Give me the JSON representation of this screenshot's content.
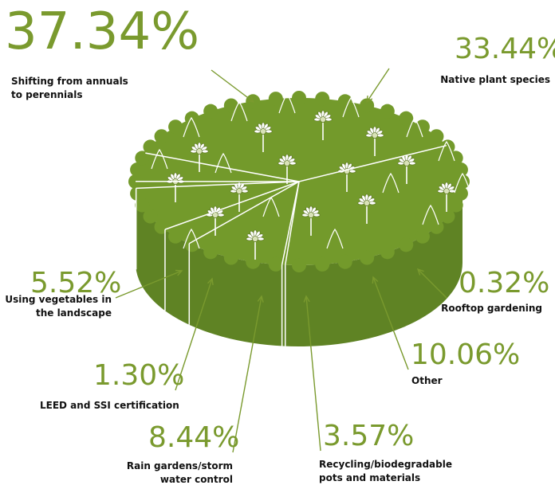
{
  "chart_data": {
    "type": "pie",
    "title": "",
    "unit": "%",
    "slices": [
      {
        "label": "Shifting from annuals to perennials",
        "label_lines": [
          "Shifting from annuals",
          "to perennials"
        ],
        "value": 37.34,
        "display": "37.34%"
      },
      {
        "label": "Native plant species",
        "label_lines": [
          "Native plant species"
        ],
        "value": 33.44,
        "display": "33.44%"
      },
      {
        "label": "Rooftop gardening",
        "label_lines": [
          "Rooftop gardening"
        ],
        "value": 0.32,
        "display": "0.32%"
      },
      {
        "label": "Other",
        "label_lines": [
          "Other"
        ],
        "value": 10.06,
        "display": "10.06%"
      },
      {
        "label": "Recycling/biodegradable pots and materials",
        "label_lines": [
          "Recycling/biodegradable",
          "pots and materials"
        ],
        "value": 3.57,
        "display": "3.57%"
      },
      {
        "label": "Rain gardens/storm water control",
        "label_lines": [
          "Rain gardens/storm",
          "water control"
        ],
        "value": 8.44,
        "display": "8.44%"
      },
      {
        "label": "LEED and SSI certification",
        "label_lines": [
          "LEED and SSI certification"
        ],
        "value": 1.3,
        "display": "1.30%"
      },
      {
        "label": "Using vegetables in the landscape",
        "label_lines": [
          "Using vegetables in",
          "the landscape"
        ],
        "value": 5.52,
        "display": "5.52%"
      }
    ]
  },
  "colors": {
    "accent": "#7a9a2e",
    "pie": "#739a2b",
    "pie_dark": "#5f8324",
    "text": "#111111"
  }
}
